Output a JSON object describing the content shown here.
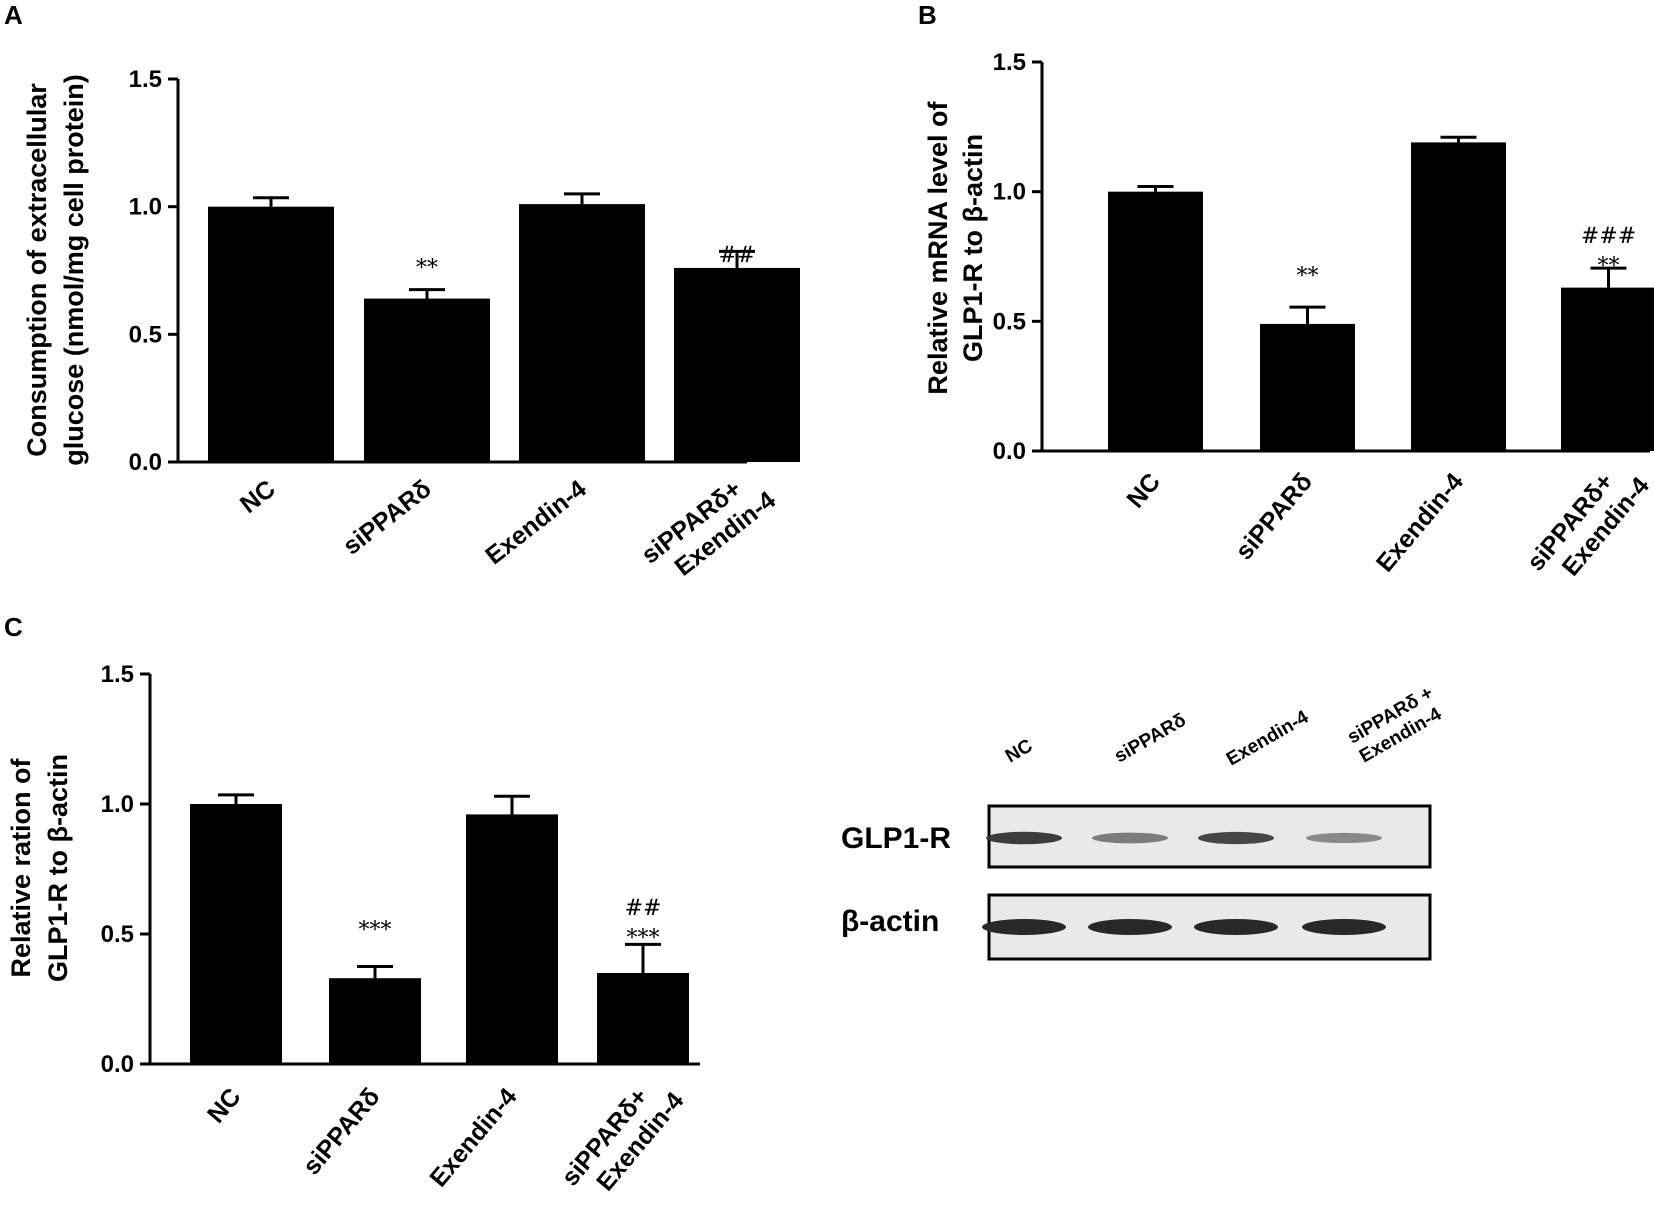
{
  "panels": [
    "A",
    "B",
    "C"
  ],
  "chart_data": [
    {
      "panel": "A",
      "type": "bar",
      "categories": [
        "NC",
        "siPPARδ",
        "Exendin-4",
        "siPPARδ+ Exendin-4"
      ],
      "values": [
        1.0,
        0.64,
        1.01,
        0.76
      ],
      "errors": [
        0.035,
        0.035,
        0.04,
        0.065
      ],
      "annotations": [
        [],
        [
          "**"
        ],
        [],
        [
          "##",
          "*"
        ]
      ],
      "ylabel": [
        "Consumption of extracellular",
        "glucose (nmol/mg cell protein)"
      ],
      "ylim": [
        0,
        1.5
      ],
      "yticks": [
        "0.0",
        "0.5",
        "1.0",
        "1.5"
      ],
      "color": "#000000"
    },
    {
      "panel": "B",
      "type": "bar",
      "categories": [
        "NC",
        "siPPARδ",
        "Exendin-4",
        "siPPARδ+ Exendin-4"
      ],
      "values": [
        1.0,
        0.49,
        1.19,
        0.63
      ],
      "errors": [
        0.02,
        0.065,
        0.02,
        0.075
      ],
      "annotations": [
        [],
        [
          "**"
        ],
        [],
        [
          "###",
          "**"
        ]
      ],
      "ylabel": [
        "Relative mRNA level of",
        "GLP1-R to β-actin"
      ],
      "ylim": [
        0,
        1.5
      ],
      "yticks": [
        "0.0",
        "0.5",
        "1.0",
        "1.5"
      ],
      "color": "#000000"
    },
    {
      "panel": "C",
      "type": "bar",
      "categories": [
        "NC",
        "siPPARδ",
        "Exendin-4",
        "siPPARδ+ Exendin-4"
      ],
      "values": [
        1.0,
        0.33,
        0.96,
        0.35
      ],
      "errors": [
        0.035,
        0.045,
        0.07,
        0.11
      ],
      "annotations": [
        [],
        [
          "***"
        ],
        [],
        [
          "##",
          "***"
        ]
      ],
      "ylabel": [
        "Relative ration of",
        "GLP1-R to β-actin"
      ],
      "ylim": [
        0,
        1.5
      ],
      "yticks": [
        "0.0",
        "0.5",
        "1.0",
        "1.5"
      ],
      "color": "#000000"
    }
  ],
  "western_blot": {
    "lanes": [
      "NC",
      "siPPARδ",
      "Exendin-4",
      "siPPARδ +",
      "Exendin-4"
    ],
    "rows": [
      {
        "label": "GLP1-R",
        "band_intensity": [
          0.9,
          0.55,
          0.85,
          0.45
        ]
      },
      {
        "label": "β-actin",
        "band_intensity": [
          1.0,
          1.0,
          1.0,
          1.0
        ]
      }
    ]
  }
}
